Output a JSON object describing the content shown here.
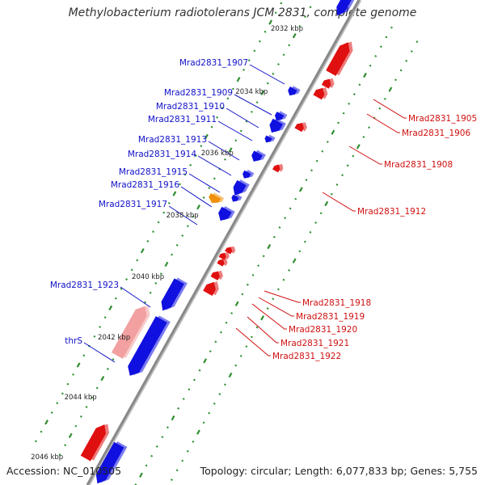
{
  "title": "Methylobacterium radiotolerans JCM 2831, complete genome",
  "footer": {
    "accession": "Accession: NC_010505",
    "topology": "Topology: circular; Length: 6,077,833 bp; Genes: 5,755"
  },
  "colors": {
    "forward_gene": "#1010e0",
    "reverse_gene": "#e01010",
    "forward_label": "#1010c8",
    "reverse_label": "#d01010",
    "highlight_gene": "#f2a0a0",
    "orange_gene": "#f0900a",
    "backbone": "#888888",
    "tick": "#2d8f2d"
  },
  "kbp_markers": [
    "2032 kbp",
    "2034 kbp",
    "2036 kbp",
    "2038 kbp",
    "2040 kbp",
    "2042 kbp",
    "2044 kbp",
    "2046 kbp"
  ],
  "forward_labels": [
    "Mrad2831_1907",
    "Mrad2831_1909",
    "Mrad2831_1910",
    "Mrad2831_1911",
    "Mrad2831_1913",
    "Mrad2831_1914",
    "Mrad2831_1915",
    "Mrad2831_1916",
    "Mrad2831_1917",
    "Mrad2831_1923",
    "thrS"
  ],
  "reverse_labels": [
    "Mrad2831_1905",
    "Mrad2831_1906",
    "Mrad2831_1908",
    "Mrad2831_1912",
    "Mrad2831_1918",
    "Mrad2831_1919",
    "Mrad2831_1920",
    "Mrad2831_1921",
    "Mrad2831_1922"
  ]
}
